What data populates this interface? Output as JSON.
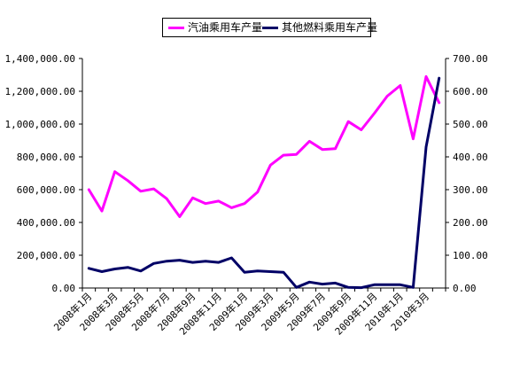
{
  "chart_data": {
    "type": "line",
    "title": "",
    "xlabel": "",
    "ylabel_left": "",
    "ylabel_right": "",
    "categories": [
      "2008年1月",
      "2008年2月",
      "2008年3月",
      "2008年4月",
      "2008年5月",
      "2008年6月",
      "2008年7月",
      "2008年8月",
      "2008年9月",
      "2008年10月",
      "2008年11月",
      "2008年12月",
      "2009年1月",
      "2009年2月",
      "2009年3月",
      "2009年4月",
      "2009年5月",
      "2009年6月",
      "2009年7月",
      "2009年8月",
      "2009年9月",
      "2009年10月",
      "2009年11月",
      "2009年12月",
      "2010年1月",
      "2010年2月",
      "2010年3月",
      "2010年4月"
    ],
    "x_tick_labels": [
      "2008年1月",
      "2008年3月",
      "2008年5月",
      "2008年7月",
      "2008年9月",
      "2008年11月",
      "2009年1月",
      "2009年3月",
      "2009年5月",
      "2009年7月",
      "2009年9月",
      "2009年11月",
      "2010年1月",
      "2010年3月"
    ],
    "left_axis": {
      "ylim": [
        0,
        1400000
      ],
      "tick_labels": [
        "0.00",
        "200,000.00",
        "400,000.00",
        "600,000.00",
        "800,000.00",
        "1,000,000.00",
        "1,200,000.00",
        "1,400,000.00"
      ]
    },
    "right_axis": {
      "ylim": [
        0,
        700
      ],
      "tick_labels": [
        "0.00",
        "100.00",
        "200.00",
        "300.00",
        "400.00",
        "500.00",
        "600.00",
        "700.00"
      ]
    },
    "grid": false,
    "legend_position": "top",
    "series": [
      {
        "name": "汽油乘用车产量",
        "axis": "left",
        "color": "#ff00ff",
        "values": [
          600000,
          470000,
          710000,
          655000,
          590000,
          605000,
          545000,
          435000,
          550000,
          515000,
          530000,
          490000,
          515000,
          585000,
          750000,
          810000,
          815000,
          895000,
          845000,
          850000,
          1015000,
          965000,
          1065000,
          1170000,
          1235000,
          910000,
          1290000,
          1130000
        ]
      },
      {
        "name": "其他燃料乘用车产量",
        "axis": "right",
        "color": "#000066",
        "values": [
          60,
          50,
          58,
          63,
          52,
          75,
          82,
          85,
          78,
          82,
          78,
          92,
          48,
          52,
          50,
          48,
          2,
          18,
          12,
          15,
          2,
          1,
          10,
          10,
          10,
          2,
          430,
          640
        ]
      }
    ]
  }
}
